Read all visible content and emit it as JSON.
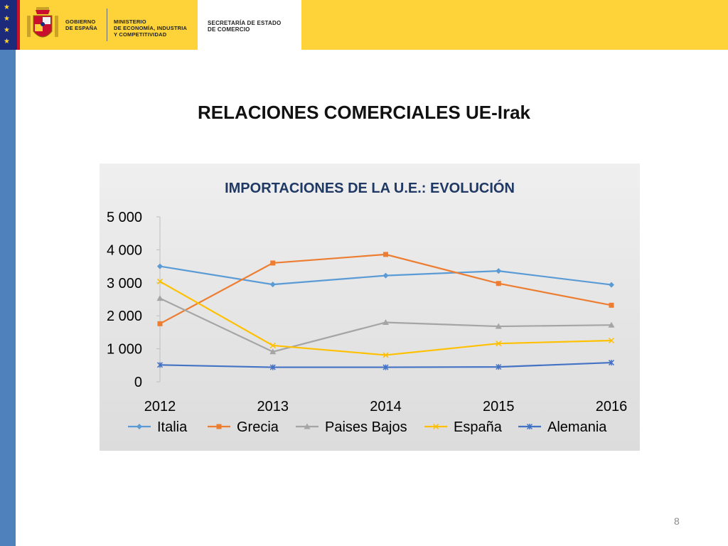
{
  "header": {
    "gov_lines": [
      "GOBIERNO",
      "DE ESPAÑA"
    ],
    "ministry_lines": [
      "MINISTERIO",
      "DE ECONOMÍA, INDUSTRIA",
      "Y COMPETITIVIDAD"
    ],
    "secretary_lines": [
      "SECRETARÍA DE ESTADO",
      "DE COMERCIO"
    ]
  },
  "page_title": "RELACIONES COMERCIALES UE-Irak",
  "slide_number": "8",
  "chart_data": {
    "type": "line",
    "title": "IMPORTACIONES DE LA U.E.: EVOLUCIÓN",
    "categories": [
      "2012",
      "2013",
      "2014",
      "2015",
      "2016"
    ],
    "ylim": [
      0,
      5000
    ],
    "yticks": [
      0,
      1000,
      2000,
      3000,
      4000,
      5000
    ],
    "ytick_labels": [
      "0",
      "1 000",
      "2 000",
      "3 000",
      "4 000",
      "5 000"
    ],
    "grid": false,
    "legend": "bottom",
    "series": [
      {
        "name": "Italia",
        "values": [
          3500,
          2950,
          3220,
          3360,
          2940
        ],
        "color": "#5b9bd5",
        "marker": "diamond"
      },
      {
        "name": "Grecia",
        "values": [
          1760,
          3600,
          3860,
          2980,
          2320
        ],
        "color": "#ed7d31",
        "marker": "square"
      },
      {
        "name": "Paises Bajos",
        "values": [
          2530,
          910,
          1800,
          1680,
          1720
        ],
        "color": "#a5a5a5",
        "marker": "triangle"
      },
      {
        "name": "España",
        "values": [
          3040,
          1100,
          810,
          1160,
          1250
        ],
        "color": "#ffc000",
        "marker": "x"
      },
      {
        "name": "Alemania",
        "values": [
          510,
          440,
          440,
          450,
          580
        ],
        "color": "#4472c4",
        "marker": "star"
      }
    ]
  }
}
